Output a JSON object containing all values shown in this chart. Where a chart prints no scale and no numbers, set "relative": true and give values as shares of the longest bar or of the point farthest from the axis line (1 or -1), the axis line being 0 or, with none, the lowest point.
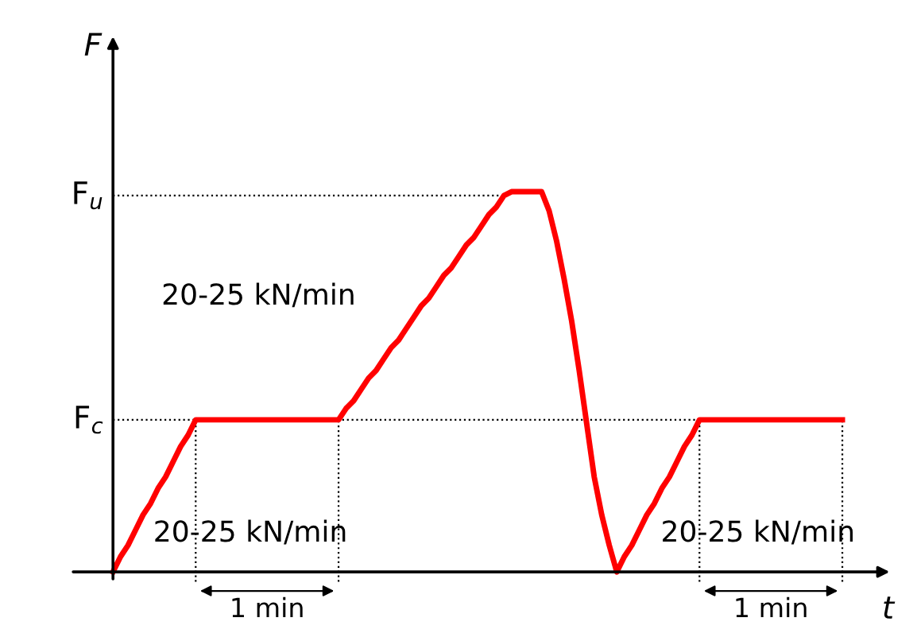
{
  "chart_data": {
    "type": "line",
    "relative": true,
    "xlabel": "t",
    "ylabel": "F",
    "categories": [
      null,
      null,
      null,
      null,
      null,
      null,
      null,
      null,
      null,
      null,
      null,
      null,
      null,
      null,
      null,
      null,
      null,
      null,
      null,
      null,
      null,
      null,
      null,
      null,
      null,
      null,
      null,
      null,
      null,
      null,
      null,
      null,
      null,
      null,
      null,
      null,
      null,
      null,
      null,
      null,
      null,
      null,
      null,
      null,
      null,
      null,
      null,
      null,
      null,
      null,
      null,
      null,
      null,
      null,
      null,
      null,
      null,
      null,
      null,
      null,
      null,
      null,
      null,
      null,
      null,
      null,
      null,
      null,
      null,
      null,
      null,
      null,
      null,
      null,
      null,
      null,
      null,
      null,
      null,
      null,
      null,
      null,
      null,
      null,
      null,
      null,
      null,
      null,
      null,
      null,
      null,
      null,
      null,
      null,
      null,
      null,
      null,
      null
    ],
    "series": [
      {
        "color": "#ff0000",
        "values": [
          0,
          0.04,
          0.07,
          0.11,
          0.15,
          0.18,
          0.22,
          0.25,
          0.29,
          0.33,
          0.36,
          0.4,
          0.4,
          0.4,
          0.4,
          0.4,
          0.4,
          0.4,
          0.4,
          0.4,
          0.4,
          0.4,
          0.4,
          0.4,
          0.4,
          0.4,
          0.4,
          0.4,
          0.4,
          0.4,
          0.4,
          0.43,
          0.45,
          0.48,
          0.51,
          0.53,
          0.56,
          0.59,
          0.61,
          0.64,
          0.67,
          0.7,
          0.72,
          0.75,
          0.78,
          0.8,
          0.83,
          0.86,
          0.88,
          0.91,
          0.94,
          0.96,
          0.99,
          1,
          1,
          1,
          1,
          1,
          0.95,
          0.87,
          0.77,
          0.66,
          0.53,
          0.39,
          0.25,
          0.15,
          0.07,
          0,
          0.04,
          0.07,
          0.11,
          0.15,
          0.18,
          0.22,
          0.25,
          0.29,
          0.33,
          0.36,
          0.4,
          0.4,
          0.4,
          0.4,
          0.4,
          0.4,
          0.4,
          0.4,
          0.4,
          0.4,
          0.4,
          0.4,
          0.4,
          0.4,
          0.4,
          0.4,
          0.4,
          0.4,
          0.4,
          0.4
        ]
      }
    ],
    "ref_lines": [
      {
        "axis": "y",
        "value": 0.99,
        "label": "F$_{u}$",
        "line_style": "dotted",
        "color": "#000000"
      },
      {
        "axis": "y",
        "value": 0.4,
        "label": "F$_{c}$",
        "line_style": "dotted",
        "color": "#000000"
      }
    ],
    "annotations": [
      "20-25 kN/min",
      "20-25 kN/min",
      "20-25 kN/min",
      "1 min",
      "1 min"
    ],
    "line_style": "solid",
    "marker": "none"
  }
}
